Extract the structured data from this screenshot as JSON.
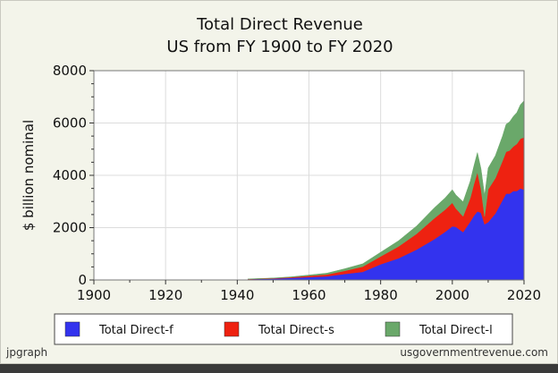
{
  "chart_data": {
    "type": "area",
    "stacked": true,
    "title": "Total Direct Revenue",
    "subtitle": "US from FY 1900 to FY 2020",
    "xlabel": "",
    "ylabel": "$ billion nominal",
    "xlim": [
      1900,
      2020
    ],
    "ylim": [
      0,
      8000
    ],
    "x_ticks": [
      1900,
      1920,
      1940,
      1960,
      1980,
      2000,
      2020
    ],
    "y_ticks": [
      0,
      2000,
      4000,
      6000,
      8000
    ],
    "grid": true,
    "legend_position": "bottom",
    "x": [
      1943,
      1950,
      1955,
      1960,
      1965,
      1970,
      1975,
      1980,
      1985,
      1990,
      1995,
      1998,
      2000,
      2001,
      2003,
      2005,
      2006,
      2007,
      2008,
      2009,
      2010,
      2012,
      2014,
      2015,
      2016,
      2017,
      2018,
      2019,
      2020
    ],
    "series": [
      {
        "name": "Total Direct-f",
        "color": "#3333ee",
        "values": [
          30,
          50,
          80,
          110,
          140,
          230,
          310,
          600,
          830,
          1160,
          1560,
          1840,
          2050,
          2030,
          1830,
          2230,
          2450,
          2620,
          2570,
          2130,
          2210,
          2540,
          3050,
          3300,
          3300,
          3400,
          3400,
          3500,
          3450
        ]
      },
      {
        "name": "Total Direct-s",
        "color": "#ee2211",
        "values": [
          5,
          15,
          25,
          50,
          70,
          120,
          200,
          300,
          450,
          600,
          800,
          850,
          900,
          700,
          600,
          900,
          1200,
          1500,
          900,
          300,
          1250,
          1350,
          1500,
          1600,
          1650,
          1700,
          1800,
          1900,
          2000
        ]
      },
      {
        "name": "Total Direct-l",
        "color": "#6aa86a",
        "values": [
          5,
          10,
          15,
          30,
          50,
          80,
          110,
          160,
          220,
          300,
          400,
          450,
          500,
          520,
          560,
          650,
          700,
          750,
          780,
          800,
          820,
          860,
          950,
          1050,
          1100,
          1150,
          1200,
          1300,
          1400
        ]
      }
    ]
  },
  "footer": {
    "left": "jpgraph",
    "right": "usgovernmentrevenue.com"
  }
}
